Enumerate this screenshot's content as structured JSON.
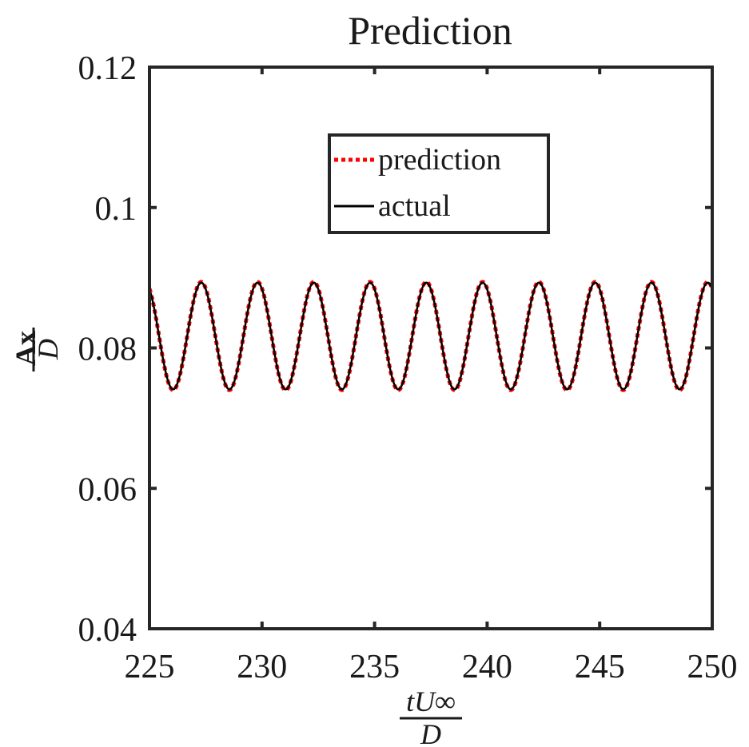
{
  "chart_data": {
    "type": "line",
    "title": "Prediction",
    "xlabel": {
      "numerator": "tU∞",
      "denominator": "D"
    },
    "ylabel": {
      "numerator": "Ax",
      "denominator": "D"
    },
    "xlim": [
      225,
      250
    ],
    "ylim": [
      0.04,
      0.12
    ],
    "xticks": [
      225,
      230,
      235,
      240,
      245,
      250
    ],
    "xtick_labels": [
      "225",
      "230",
      "235",
      "240",
      "245",
      "250"
    ],
    "yticks": [
      0.04,
      0.06,
      0.08,
      0.1,
      0.12
    ],
    "ytick_labels": [
      "0.04",
      "0.06",
      "0.08",
      "0.1",
      "0.12"
    ],
    "grid": false,
    "legend_position": "top-center",
    "series": [
      {
        "name": "prediction",
        "color": "#ff0000",
        "style": "dotted",
        "signal": {
          "mean": 0.0817,
          "amplitude": 0.0077,
          "period": 2.5,
          "peak_at": 227.3,
          "t_start": 225,
          "t_end": 250
        }
      },
      {
        "name": "actual",
        "color": "#000000",
        "style": "solid",
        "signal": {
          "mean": 0.0817,
          "amplitude": 0.0076,
          "period": 2.5,
          "peak_at": 227.3,
          "t_start": 225,
          "t_end": 250
        }
      }
    ]
  }
}
